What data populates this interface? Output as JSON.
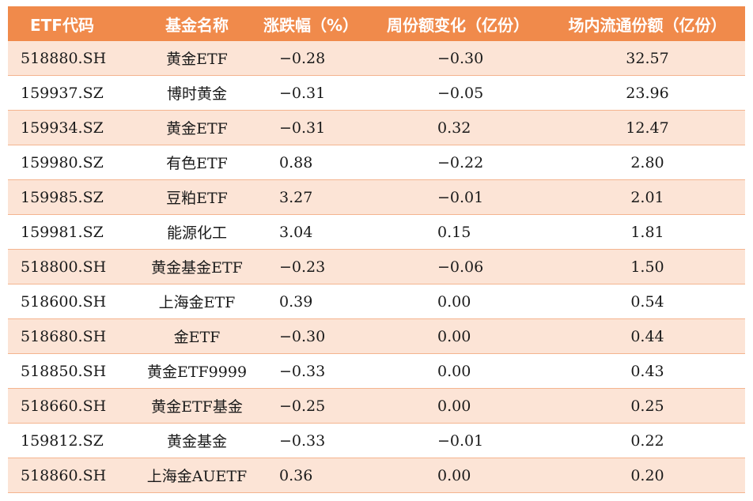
{
  "table": {
    "headers": {
      "code": "ETF代码",
      "name": "基金名称",
      "change_pct": "涨跌幅（%）",
      "weekly_share_change": "周份额变化（亿份）",
      "floating_shares": "场内流通份额（亿份）"
    },
    "colors": {
      "header_bg": "#f08a4b",
      "header_text": "#ffffff",
      "stripe": "#fce4d6",
      "border": "#f4b48f"
    },
    "rows": [
      {
        "code": "518880.SH",
        "name": "黄金ETF",
        "change_pct": "−0.28",
        "weekly_share_change": "−0.30",
        "floating_shares": "32.57"
      },
      {
        "code": "159937.SZ",
        "name": "博时黄金",
        "change_pct": "−0.31",
        "weekly_share_change": "−0.05",
        "floating_shares": "23.96"
      },
      {
        "code": "159934.SZ",
        "name": "黄金ETF",
        "change_pct": "−0.31",
        "weekly_share_change": "0.32",
        "floating_shares": "12.47"
      },
      {
        "code": "159980.SZ",
        "name": "有色ETF",
        "change_pct": "0.88",
        "weekly_share_change": "−0.22",
        "floating_shares": "2.80"
      },
      {
        "code": "159985.SZ",
        "name": "豆粕ETF",
        "change_pct": "3.27",
        "weekly_share_change": "−0.01",
        "floating_shares": "2.01"
      },
      {
        "code": "159981.SZ",
        "name": "能源化工",
        "change_pct": "3.04",
        "weekly_share_change": "0.15",
        "floating_shares": "1.81"
      },
      {
        "code": "518800.SH",
        "name": "黄金基金ETF",
        "change_pct": "−0.23",
        "weekly_share_change": "−0.06",
        "floating_shares": "1.50"
      },
      {
        "code": "518600.SH",
        "name": "上海金ETF",
        "change_pct": "0.39",
        "weekly_share_change": "0.00",
        "floating_shares": "0.54"
      },
      {
        "code": "518680.SH",
        "name": "金ETF",
        "change_pct": "−0.30",
        "weekly_share_change": "0.00",
        "floating_shares": "0.44"
      },
      {
        "code": "518850.SH",
        "name": "黄金ETF9999",
        "change_pct": "−0.33",
        "weekly_share_change": "0.00",
        "floating_shares": "0.43"
      },
      {
        "code": "518660.SH",
        "name": "黄金ETF基金",
        "change_pct": "−0.25",
        "weekly_share_change": "0.00",
        "floating_shares": "0.25"
      },
      {
        "code": "159812.SZ",
        "name": "黄金基金",
        "change_pct": "−0.33",
        "weekly_share_change": "−0.01",
        "floating_shares": "0.22"
      },
      {
        "code": "518860.SH",
        "name": "上海金AUETF",
        "change_pct": "0.36",
        "weekly_share_change": "0.00",
        "floating_shares": "0.20"
      }
    ]
  }
}
